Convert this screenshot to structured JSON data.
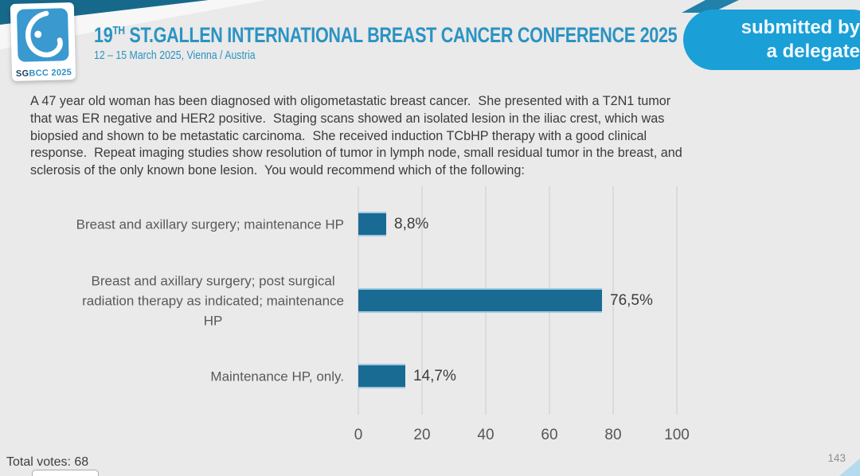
{
  "header": {
    "logo_sg": "SG",
    "logo_rest": "BCC 2025",
    "title_num": "19",
    "title_sup": "TH",
    "title_rest": " ST.GALLEN INTERNATIONAL BREAST CANCER CONFERENCE 2025",
    "subtitle": "12 – 15 March 2025, Vienna / Austria",
    "badge_line1": "submitted by",
    "badge_line2": "a delegate"
  },
  "question": {
    "text": "A 47 year old woman has been diagnosed with oligometastatic breast cancer.  She presented with a T2N1 tumor\nthat was ER negative and HER2 positive.  Staging scans showed an isolated lesion in the iliac crest, which was\nbiopsied and shown to be metastatic carcinoma.  She received induction TCbHP therapy with a good clinical\nresponse.  Repeat imaging studies show resolution of tumor in lymph node, small residual tumor in the breast, and\nsclerosis of the only known bone lesion.  You would recommend which of the following:"
  },
  "chart_data": {
    "type": "bar",
    "orientation": "horizontal",
    "categories": [
      "Breast and axillary surgery; maintenance HP",
      "Breast and axillary surgery; post surgical\nradiation therapy as indicated; maintenance\nHP",
      "Maintenance HP, only."
    ],
    "values": [
      8.8,
      76.5,
      14.7
    ],
    "value_labels": [
      "8,8%",
      "76,5%",
      "14,7%"
    ],
    "xticks": [
      0,
      20,
      40,
      60,
      80,
      100
    ],
    "xlim": [
      0,
      107
    ],
    "grid": true,
    "bar_color": "#1a6b94",
    "title": "",
    "xlabel": "",
    "ylabel": ""
  },
  "footer": {
    "total_votes": "Total votes: 68",
    "page_number": "143"
  },
  "colors": {
    "accent_blue": "#2b93c3",
    "badge_blue": "#1a9fd7",
    "band_teal": "#17698c",
    "bar_teal": "#1a6b94",
    "background": "#eaeaea"
  }
}
